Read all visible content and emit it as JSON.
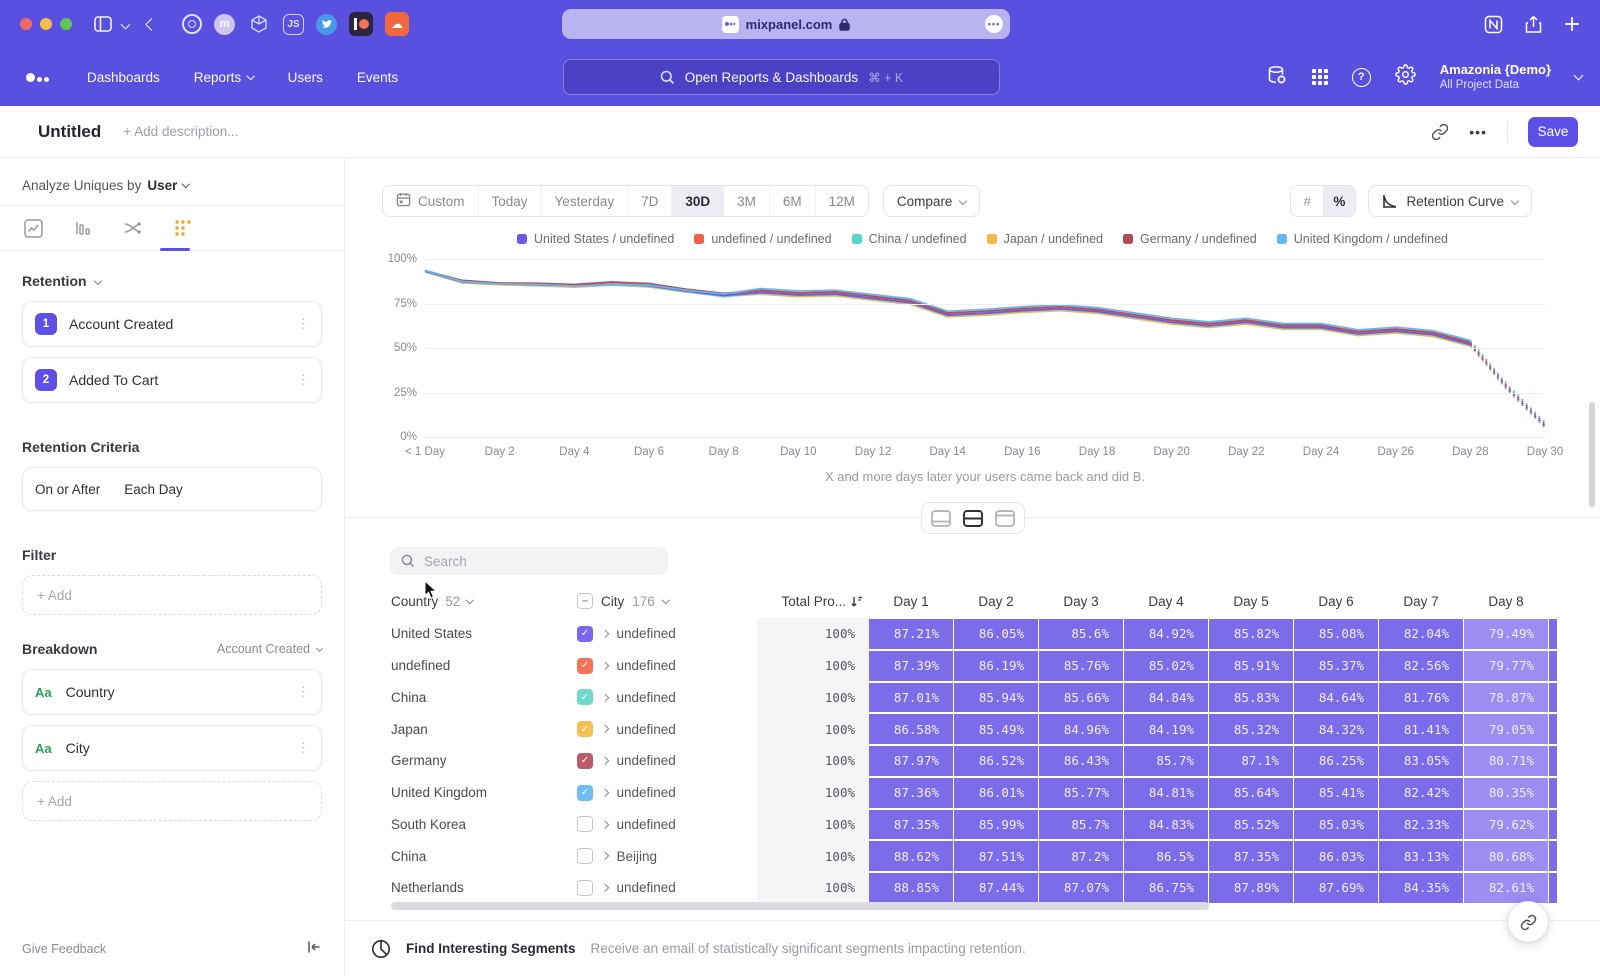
{
  "browser": {
    "url": "mixpanel.com",
    "badge_dots": "•••",
    "toolbar_icons": [
      "sidebar-icon",
      "chevron-down-icon",
      "back-icon",
      "onepassword-icon",
      "m-extension-icon",
      "cube-icon",
      "js-icon",
      "twitter-icon",
      "patreon-icon",
      "soundcloud-icon"
    ],
    "right_icons": [
      "notion-icon",
      "share-icon",
      "new-tab-icon"
    ]
  },
  "nav": {
    "links": [
      "Dashboards",
      "Reports",
      "Users",
      "Events"
    ],
    "search": {
      "placeholder": "Open Reports & Dashboards",
      "shortcut": "⌘ + K"
    },
    "project": {
      "name": "Amazonia {Demo}",
      "subtitle": "All Project Data"
    }
  },
  "header": {
    "title": "Untitled",
    "description_placeholder": "+ Add description...",
    "more_label": "•••",
    "save_label": "Save"
  },
  "sidebar": {
    "analyze_label": "Analyze Uniques by",
    "analyze_value": "User",
    "section_retention": "Retention",
    "steps": [
      {
        "num": "1",
        "label": "Account Created"
      },
      {
        "num": "2",
        "label": "Added To Cart"
      }
    ],
    "criteria_label": "Retention Criteria",
    "criteria_on": "On or After",
    "criteria_each": "Each Day",
    "filter_label": "Filter",
    "add_label": "+ Add",
    "breakdown_label": "Breakdown",
    "breakdown_event": "Account Created",
    "breakdowns": [
      {
        "type": "Aa",
        "label": "Country"
      },
      {
        "type": "Aa",
        "label": "City"
      }
    ],
    "give_feedback": "Give Feedback"
  },
  "controls": {
    "ranges": [
      "Custom",
      "Today",
      "Yesterday",
      "7D",
      "30D",
      "3M",
      "6M",
      "12M"
    ],
    "active_range": "30D",
    "compare_label": "Compare",
    "units": [
      "#",
      "%"
    ],
    "active_unit": "%",
    "chart_type_label": "Retention Curve"
  },
  "chart_data": {
    "type": "line",
    "title": "Retention curve by Country / City breakdown",
    "xlabel": "",
    "ylabel": "",
    "ylim": [
      0,
      100
    ],
    "y_ticks": [
      "100%",
      "75%",
      "50%",
      "25%",
      "0%"
    ],
    "x_ticks": [
      "< 1 Day",
      "Day 2",
      "Day 4",
      "Day 6",
      "Day 8",
      "Day 10",
      "Day 12",
      "Day 14",
      "Day 16",
      "Day 18",
      "Day 20",
      "Day 22",
      "Day 24",
      "Day 26",
      "Day 28",
      "Day 30"
    ],
    "x_unit": "day",
    "grid": true,
    "legend_position": "top",
    "dashed_from_index": 28,
    "series": [
      {
        "name": "Japan / undefined",
        "color": "#f4b844",
        "values": [
          92.8,
          86.58,
          85.49,
          84.96,
          84.19,
          85.32,
          84.32,
          81.41,
          79.05,
          80.2,
          78.8,
          79.3,
          76.8,
          74.5,
          67.5,
          68.5,
          70.0,
          71.0,
          69.5,
          66.5,
          63.5,
          61.5,
          63.5,
          60.5,
          60.5,
          57.0,
          58.5,
          56.5,
          51.0,
          26.0,
          5.0
        ]
      },
      {
        "name": "China / undefined",
        "color": "#5ed3c7",
        "values": [
          93.0,
          87.01,
          85.94,
          85.66,
          84.84,
          85.83,
          84.64,
          81.76,
          78.87,
          80.9,
          79.5,
          80.0,
          77.5,
          75.2,
          68.2,
          69.2,
          70.7,
          71.7,
          70.2,
          67.2,
          64.2,
          62.2,
          64.2,
          61.2,
          61.2,
          57.7,
          59.2,
          57.2,
          51.7,
          26.6,
          5.7
        ]
      },
      {
        "name": "undefined / undefined",
        "color": "#f0614d",
        "values": [
          93.3,
          87.39,
          86.19,
          85.76,
          85.02,
          85.91,
          85.37,
          82.56,
          79.77,
          81.5,
          80.1,
          80.6,
          78.1,
          75.8,
          68.8,
          69.8,
          71.3,
          72.3,
          70.8,
          67.8,
          64.8,
          62.8,
          64.8,
          61.8,
          61.8,
          58.3,
          59.8,
          57.8,
          52.3,
          27.4,
          6.3
        ]
      },
      {
        "name": "United States / undefined",
        "color": "#6a5ae8",
        "values": [
          93.2,
          87.21,
          86.05,
          85.6,
          84.92,
          85.82,
          85.08,
          82.04,
          79.49,
          81.2,
          79.8,
          80.3,
          77.8,
          75.5,
          68.5,
          69.5,
          71.0,
          72.0,
          70.5,
          67.5,
          64.5,
          62.5,
          64.5,
          61.5,
          61.5,
          58.0,
          59.5,
          57.5,
          52.0,
          27.0,
          6.0
        ]
      },
      {
        "name": "Germany / undefined",
        "color": "#b44a5e",
        "values": [
          93.5,
          87.97,
          86.52,
          86.43,
          85.7,
          87.1,
          86.25,
          83.05,
          80.71,
          82.4,
          81.0,
          81.5,
          79.0,
          76.7,
          69.7,
          70.7,
          72.2,
          73.2,
          71.7,
          68.7,
          65.7,
          63.7,
          65.7,
          62.7,
          62.7,
          59.2,
          60.7,
          58.7,
          53.2,
          28.2,
          7.2
        ]
      },
      {
        "name": "United Kingdom / undefined",
        "color": "#62b7f0",
        "values": [
          93.6,
          87.36,
          86.01,
          85.77,
          84.81,
          85.64,
          85.41,
          82.42,
          80.35,
          83.4,
          82.0,
          82.5,
          80.0,
          77.7,
          70.7,
          71.7,
          73.2,
          74.2,
          72.7,
          69.7,
          66.7,
          64.7,
          66.7,
          63.7,
          63.7,
          60.2,
          61.7,
          59.7,
          54.2,
          29.2,
          8.2
        ]
      }
    ],
    "legend_order": [
      "United States / undefined",
      "undefined / undefined",
      "China / undefined",
      "Japan / undefined",
      "Germany / undefined",
      "United Kingdom / undefined"
    ]
  },
  "caption": "X and more days later your users came back and did B.",
  "table": {
    "search_placeholder": "Search",
    "country_col": {
      "label": "Country",
      "count": "52"
    },
    "city_col": {
      "label": "City",
      "count": "176"
    },
    "total_col": "Total Pro...",
    "day_headers": [
      "Day 1",
      "Day 2",
      "Day 3",
      "Day 4",
      "Day 5",
      "Day 6",
      "Day 7",
      "Day 8"
    ],
    "rows": [
      {
        "country": "United States",
        "checked": true,
        "color": "#7a66f0",
        "city": "undefined",
        "total": "100%",
        "days": [
          "87.21%",
          "86.05%",
          "85.6%",
          "84.92%",
          "85.82%",
          "85.08%",
          "82.04%",
          "79.49%"
        ]
      },
      {
        "country": "undefined",
        "checked": true,
        "color": "#f4735a",
        "city": "undefined",
        "total": "100%",
        "days": [
          "87.39%",
          "86.19%",
          "85.76%",
          "85.02%",
          "85.91%",
          "85.37%",
          "82.56%",
          "79.77%"
        ]
      },
      {
        "country": "China",
        "checked": true,
        "color": "#6fd9cb",
        "city": "undefined",
        "total": "100%",
        "days": [
          "87.01%",
          "85.94%",
          "85.66%",
          "84.84%",
          "85.83%",
          "84.64%",
          "81.76%",
          "78.87%"
        ]
      },
      {
        "country": "Japan",
        "checked": true,
        "color": "#f6c052",
        "city": "undefined",
        "total": "100%",
        "days": [
          "86.58%",
          "85.49%",
          "84.96%",
          "84.19%",
          "85.32%",
          "84.32%",
          "81.41%",
          "79.05%"
        ]
      },
      {
        "country": "Germany",
        "checked": true,
        "color": "#bc5a6a",
        "city": "undefined",
        "total": "100%",
        "days": [
          "87.97%",
          "86.52%",
          "86.43%",
          "85.7%",
          "87.1%",
          "86.25%",
          "83.05%",
          "80.71%"
        ]
      },
      {
        "country": "United Kingdom",
        "checked": true,
        "color": "#6fbdf2",
        "city": "undefined",
        "total": "100%",
        "days": [
          "87.36%",
          "86.01%",
          "85.77%",
          "84.81%",
          "85.64%",
          "85.41%",
          "82.42%",
          "80.35%"
        ]
      },
      {
        "country": "South Korea",
        "checked": false,
        "color": "",
        "city": "undefined",
        "total": "100%",
        "days": [
          "87.35%",
          "85.99%",
          "85.7%",
          "84.83%",
          "85.52%",
          "85.03%",
          "82.33%",
          "79.62%"
        ]
      },
      {
        "country": "China",
        "checked": false,
        "color": "",
        "city": "Beijing",
        "total": "100%",
        "days": [
          "88.62%",
          "87.51%",
          "87.2%",
          "86.5%",
          "87.35%",
          "86.03%",
          "83.13%",
          "80.68%"
        ]
      },
      {
        "country": "Netherlands",
        "checked": false,
        "color": "",
        "city": "undefined",
        "total": "100%",
        "days": [
          "88.85%",
          "87.44%",
          "87.07%",
          "86.75%",
          "87.89%",
          "87.69%",
          "84.35%",
          "82.61%"
        ]
      }
    ]
  },
  "footer": {
    "title": "Find Interesting Segments",
    "subtitle": "Receive an email of statistically significant segments impacting retention."
  }
}
